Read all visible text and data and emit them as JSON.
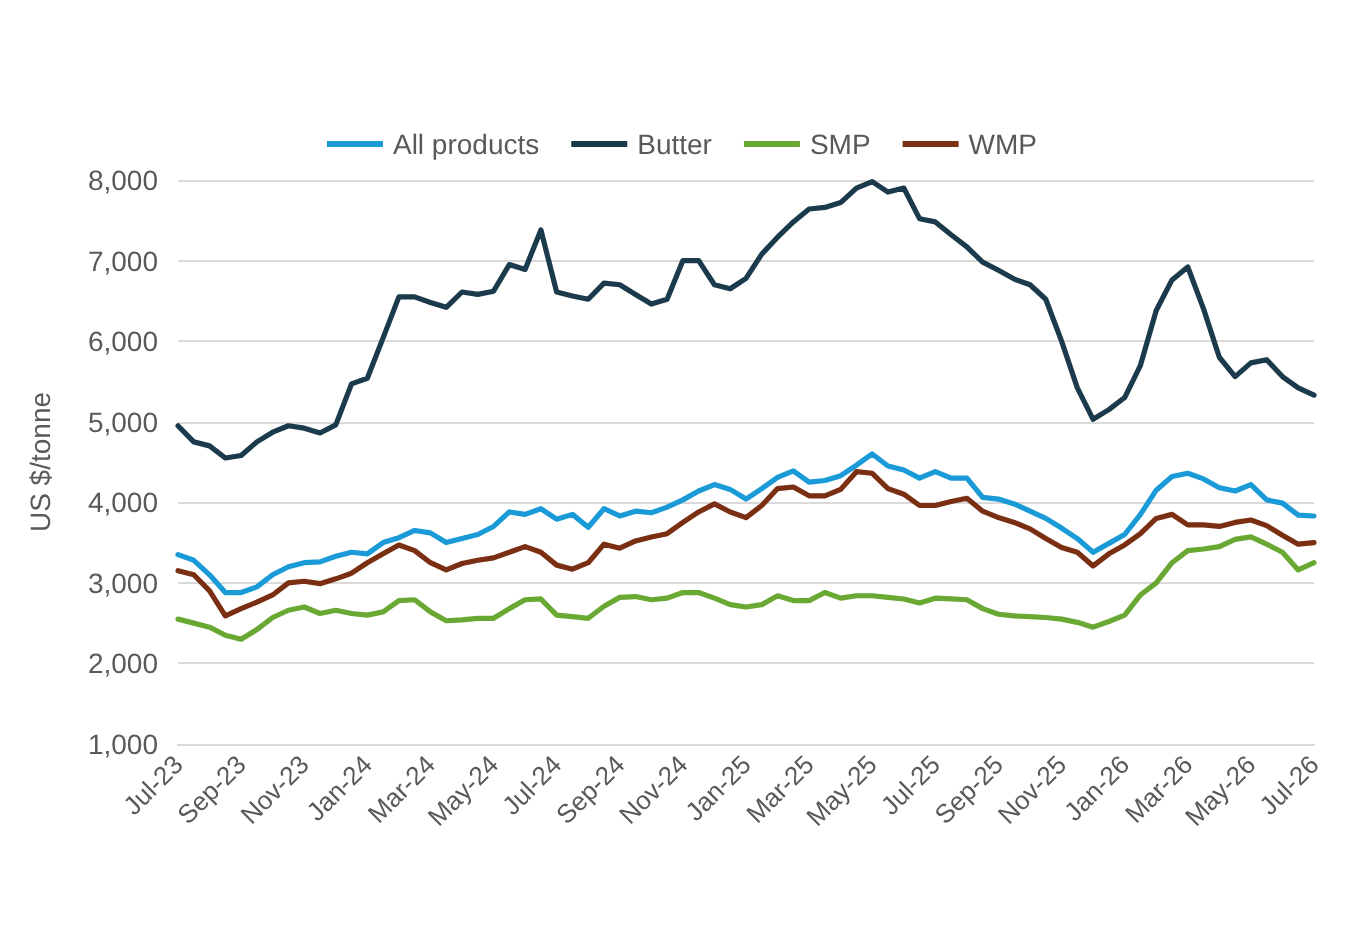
{
  "chart_data": {
    "type": "line",
    "ylabel": "US $/tonne",
    "categories": [
      "Jul-23",
      null,
      null,
      null,
      "Sep-23",
      null,
      null,
      null,
      "Nov-23",
      null,
      null,
      null,
      "Jan-24",
      null,
      null,
      null,
      "Mar-24",
      null,
      null,
      null,
      "May-24",
      null,
      null,
      null,
      "Jul-24",
      null,
      null,
      null,
      "Sep-24",
      null,
      null,
      null,
      "Nov-24",
      null,
      null,
      null,
      "Jan-25",
      null,
      null,
      null,
      "Mar-25",
      null,
      null,
      null,
      "May-25",
      null,
      null,
      null,
      "Jul-25",
      null,
      null,
      null,
      "Sep-25",
      null,
      null,
      null,
      "Nov-25",
      null,
      null,
      null,
      "Jan-26",
      null,
      null,
      null,
      "Mar-26",
      null,
      null,
      null,
      "May-26",
      null,
      null,
      null,
      "Jul-26"
    ],
    "series": [
      {
        "name": "All products",
        "color": "#1a9ad6",
        "values": [
          3350,
          3280,
          3100,
          2880,
          2880,
          2950,
          3100,
          3200,
          3250,
          3260,
          3330,
          3380,
          3360,
          3500,
          3560,
          3650,
          3620,
          3500,
          3550,
          3600,
          3700,
          3880,
          3850,
          3920,
          3790,
          3850,
          3690,
          3920,
          3830,
          3890,
          3870,
          3940,
          4030,
          4140,
          4220,
          4160,
          4040,
          4170,
          4310,
          4390,
          4250,
          4270,
          4330,
          4460,
          4600,
          4450,
          4400,
          4300,
          4380,
          4300,
          4300,
          4060,
          4040,
          3980,
          3890,
          3800,
          3680,
          3550,
          3380,
          3490,
          3600,
          3850,
          4150,
          4320,
          4360,
          4290,
          4180,
          4140,
          4220,
          4030,
          3990,
          3840,
          3830
        ]
      },
      {
        "name": "Butter",
        "color": "#1b3a4b",
        "values": [
          4950,
          4750,
          4700,
          4550,
          4580,
          4750,
          4870,
          4950,
          4920,
          4860,
          4960,
          5470,
          5540,
          6040,
          6550,
          6550,
          6480,
          6420,
          6610,
          6580,
          6620,
          6950,
          6890,
          7380,
          6610,
          6560,
          6520,
          6720,
          6700,
          6580,
          6460,
          6520,
          7000,
          7000,
          6700,
          6650,
          6780,
          7080,
          7290,
          7480,
          7640,
          7660,
          7720,
          7900,
          7980,
          7850,
          7900,
          7520,
          7480,
          7320,
          7170,
          6980,
          6880,
          6770,
          6700,
          6520,
          6000,
          5420,
          5030,
          5150,
          5300,
          5700,
          6380,
          6760,
          6920,
          6400,
          5800,
          5560,
          5730,
          5770,
          5560,
          5420,
          5330
        ]
      },
      {
        "name": "SMP",
        "color": "#6aa834",
        "values": [
          2550,
          2500,
          2450,
          2350,
          2300,
          2420,
          2570,
          2660,
          2700,
          2620,
          2660,
          2620,
          2600,
          2640,
          2780,
          2790,
          2640,
          2530,
          2540,
          2560,
          2560,
          2680,
          2790,
          2800,
          2600,
          2580,
          2560,
          2710,
          2820,
          2830,
          2790,
          2810,
          2880,
          2880,
          2810,
          2730,
          2700,
          2730,
          2840,
          2780,
          2780,
          2880,
          2810,
          2840,
          2840,
          2820,
          2800,
          2750,
          2810,
          2800,
          2790,
          2680,
          2610,
          2590,
          2580,
          2570,
          2550,
          2510,
          2450,
          2520,
          2600,
          2850,
          3000,
          3250,
          3400,
          3420,
          3450,
          3540,
          3570,
          3480,
          3380,
          3160,
          3250
        ]
      },
      {
        "name": "WMP",
        "color": "#7a2e12",
        "values": [
          3150,
          3100,
          2900,
          2590,
          2680,
          2760,
          2850,
          3000,
          3020,
          2990,
          3050,
          3120,
          3250,
          3360,
          3470,
          3400,
          3250,
          3160,
          3240,
          3280,
          3310,
          3380,
          3450,
          3380,
          3220,
          3170,
          3250,
          3480,
          3430,
          3520,
          3570,
          3610,
          3750,
          3880,
          3980,
          3880,
          3810,
          3960,
          4170,
          4190,
          4080,
          4080,
          4160,
          4380,
          4360,
          4170,
          4100,
          3960,
          3960,
          4010,
          4050,
          3890,
          3810,
          3750,
          3670,
          3550,
          3440,
          3380,
          3210,
          3360,
          3470,
          3610,
          3800,
          3850,
          3720,
          3720,
          3700,
          3750,
          3780,
          3710,
          3590,
          3480,
          3500
        ]
      }
    ],
    "ylim": [
      1000,
      8000
    ],
    "yticks": [
      {
        "value": 1000,
        "label": "1,000"
      },
      {
        "value": 2000,
        "label": "2,000"
      },
      {
        "value": 3000,
        "label": "3,000"
      },
      {
        "value": 4000,
        "label": "4,000"
      },
      {
        "value": 5000,
        "label": "5,000"
      },
      {
        "value": 6000,
        "label": "6,000"
      },
      {
        "value": 7000,
        "label": "7,000"
      },
      {
        "value": 8000,
        "label": "8,000"
      }
    ],
    "grid": "y",
    "legend": "top"
  }
}
